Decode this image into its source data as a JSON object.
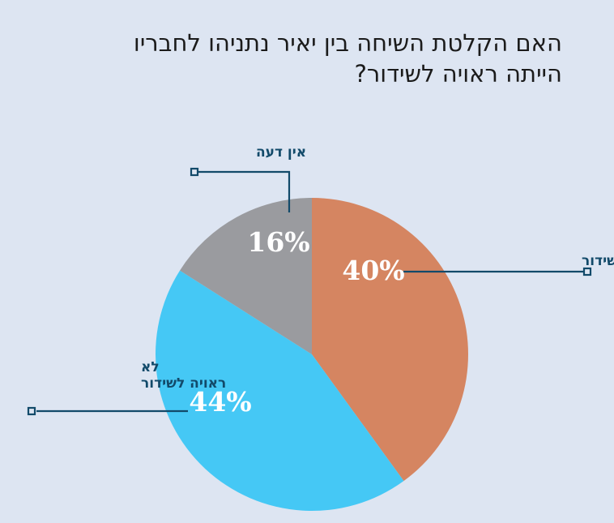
{
  "title": {
    "line1": "האם הקלטת השיחה בין יאיר נתניהו לחבריו",
    "line2": "הייתה ראויה לשידור?"
  },
  "chart_data": {
    "type": "pie",
    "title": "האם הקלטת השיחה בין יאיר נתניהו לחבריו הייתה ראויה לשידור?",
    "slices": [
      {
        "label": "ראויה לשידור",
        "value": 40,
        "display": "40%",
        "color": "#d58561"
      },
      {
        "label": "לא ראויה לשידור",
        "value": 44,
        "display": "44%",
        "color": "#45c8f5"
      },
      {
        "label": "אין דעה",
        "value": 16,
        "display": "16%",
        "color": "#9a9b9f"
      }
    ],
    "start_angle_deg": 0,
    "direction": "clockwise",
    "legend": "none"
  },
  "colors": {
    "background": "#dde5f2",
    "callout": "#124a6a",
    "percent_text": "#ffffff"
  }
}
